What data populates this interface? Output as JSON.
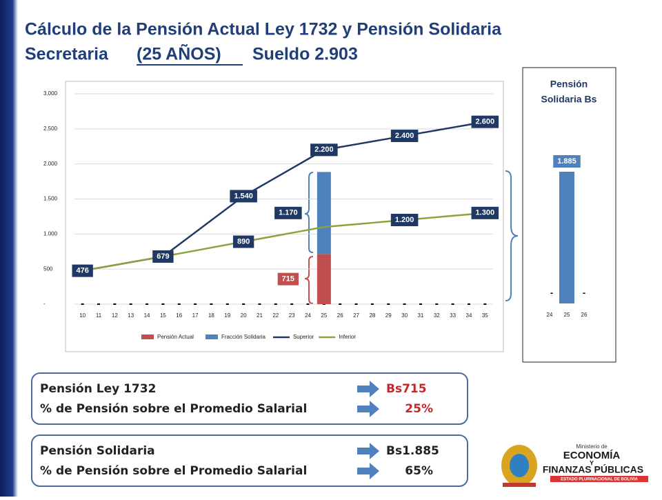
{
  "slide": {
    "title_line1": "Cálculo de la Pensión Actual Ley 1732 y Pensión Solidaria",
    "title_line2a": "Secretaria",
    "title_line2b": "(25 AÑOS)",
    "title_line2c": "Sueldo 2.903",
    "info_boxes": [
      {
        "rows": [
          [
            "Pensión Ley 1732",
            "Bs715"
          ],
          [
            "% de Pensión sobre el Promedio Salarial",
            "25%"
          ]
        ]
      },
      {
        "rows": [
          [
            "Pensión Solidaria",
            "Bs1.885"
          ],
          [
            "% de Pensión sobre el Promedio Salarial",
            "65%"
          ]
        ]
      }
    ],
    "logo": {
      "line1": "Ministerio de",
      "line2": "ECONOMÍA",
      "line3": "Y",
      "line4": "FINANZAS PÚBLICAS",
      "line5": "ESTADO PLURINACIONAL DE BOLIVIA"
    }
  },
  "chart_data": [
    {
      "type": "bar_line",
      "categories": [
        "10",
        "11",
        "12",
        "13",
        "14",
        "15",
        "16",
        "17",
        "18",
        "19",
        "20",
        "21",
        "22",
        "23",
        "24",
        "25",
        "26",
        "27",
        "28",
        "29",
        "30",
        "31",
        "32",
        "33",
        "34",
        "35"
      ],
      "ylim": [
        0,
        3000
      ],
      "yticks": [
        {
          "value": 0,
          "label": "-"
        },
        500,
        {
          "value": 1000,
          "label": "1.000"
        },
        {
          "value": 1500,
          "label": "1.500"
        },
        {
          "value": 2000,
          "label": "2.000"
        },
        {
          "value": 2500,
          "label": "2.500"
        },
        {
          "value": 3000,
          "label": "3.000"
        }
      ],
      "series": [
        {
          "name": "Pensión Actual",
          "kind": "bar",
          "color": "#c0504d",
          "values": [
            0,
            0,
            0,
            0,
            0,
            0,
            0,
            0,
            0,
            0,
            0,
            0,
            0,
            0,
            0,
            715,
            0,
            0,
            0,
            0,
            0,
            0,
            0,
            0,
            0,
            0
          ],
          "value_labels": [
            null,
            null,
            null,
            null,
            null,
            null,
            null,
            null,
            null,
            null,
            null,
            null,
            null,
            null,
            null,
            "715",
            null,
            null,
            null,
            null,
            null,
            null,
            null,
            null,
            null,
            null
          ]
        },
        {
          "name": "Fracción Solidaria",
          "kind": "bar",
          "color": "#4f81bd",
          "values": [
            0,
            0,
            0,
            0,
            0,
            0,
            0,
            0,
            0,
            0,
            0,
            0,
            0,
            0,
            0,
            1170,
            0,
            0,
            0,
            0,
            0,
            0,
            0,
            0,
            0,
            0
          ],
          "value_labels": [
            null,
            null,
            null,
            null,
            null,
            null,
            null,
            null,
            null,
            null,
            null,
            null,
            null,
            null,
            null,
            "1.170",
            null,
            null,
            null,
            null,
            null,
            null,
            null,
            null,
            null,
            null
          ]
        },
        {
          "name": "Superior",
          "kind": "line",
          "color": "#1f3864",
          "values": [
            476,
            517,
            557,
            598,
            638,
            679,
            851,
            1023,
            1196,
            1368,
            1540,
            1672,
            1804,
            1936,
            2068,
            2200,
            2240,
            2280,
            2320,
            2360,
            2400,
            2440,
            2480,
            2520,
            2560,
            2600
          ],
          "value_labels": [
            "476",
            null,
            null,
            null,
            null,
            "679",
            null,
            null,
            null,
            null,
            "1.540",
            null,
            null,
            null,
            null,
            "2.200",
            null,
            null,
            null,
            null,
            "2.400",
            null,
            null,
            null,
            null,
            "2.600"
          ]
        },
        {
          "name": "Inferior",
          "kind": "line",
          "color": "#8aa33a",
          "values": [
            476,
            517,
            557,
            598,
            638,
            679,
            721,
            763,
            806,
            848,
            890,
            932,
            974,
            1016,
            1058,
            1100,
            1120,
            1140,
            1160,
            1180,
            1200,
            1220,
            1240,
            1260,
            1280,
            1300
          ],
          "value_labels": [
            null,
            null,
            null,
            null,
            null,
            null,
            null,
            null,
            null,
            null,
            "890",
            null,
            null,
            null,
            null,
            null,
            null,
            null,
            null,
            null,
            "1.200",
            null,
            null,
            null,
            null,
            "1.300"
          ]
        }
      ]
    },
    {
      "type": "bar",
      "title": "Pensión Solidaria Bs",
      "categories": [
        "24",
        "25",
        "26"
      ],
      "values": [
        0,
        1885,
        0
      ],
      "value_labels": [
        "-",
        "1.885",
        "-"
      ],
      "color": "#4f81bd"
    }
  ]
}
